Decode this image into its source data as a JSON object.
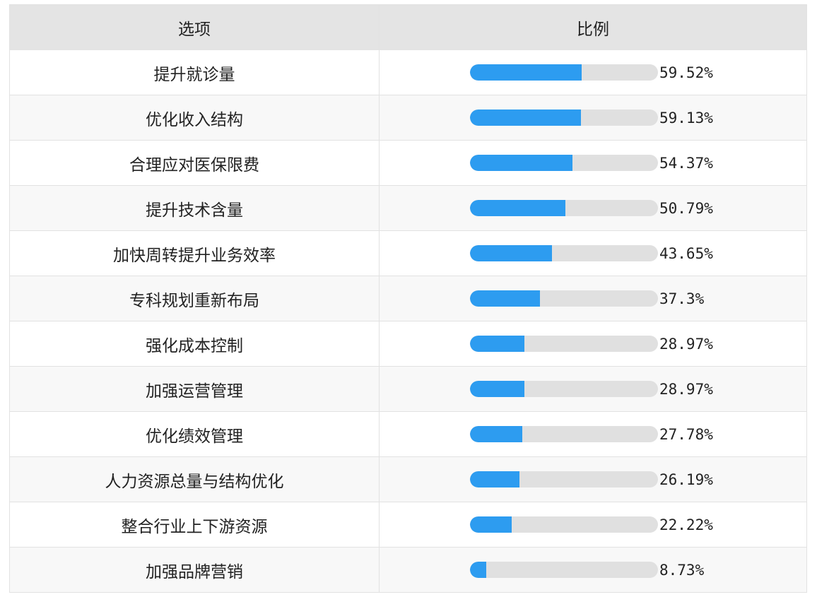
{
  "header": {
    "option_label": "选项",
    "ratio_label": "比例"
  },
  "colors": {
    "bar_fill": "#2d9cf0",
    "bar_track": "#e0e0e0",
    "header_bg": "#e4e4e4"
  },
  "chart_data": {
    "type": "bar",
    "categories": [
      "提升就诊量",
      "优化收入结构",
      "合理应对医保限费",
      "提升技术含量",
      "加快周转提升业务效率",
      "专科规划重新布局",
      "强化成本控制",
      "加强运营管理",
      "优化绩效管理",
      "人力资源总量与结构优化",
      "整合行业上下游资源",
      "加强品牌营销"
    ],
    "values": [
      59.52,
      59.13,
      54.37,
      50.79,
      43.65,
      37.3,
      28.97,
      28.97,
      27.78,
      26.19,
      22.22,
      8.73
    ],
    "value_labels": [
      "59.52%",
      "59.13%",
      "54.37%",
      "50.79%",
      "43.65%",
      "37.3%",
      "28.97%",
      "28.97%",
      "27.78%",
      "26.19%",
      "22.22%",
      "8.73%"
    ],
    "ylim": [
      0,
      100
    ]
  }
}
